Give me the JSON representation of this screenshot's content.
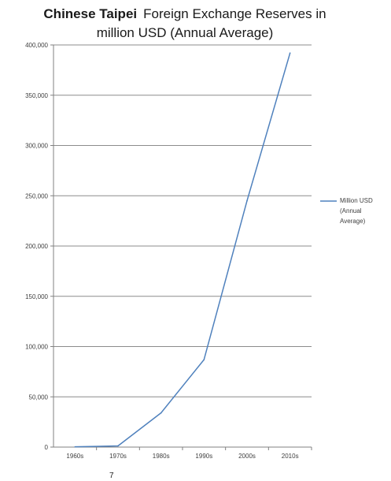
{
  "chart_data": {
    "type": "line",
    "title_bold": "Chinese Taipei",
    "title_line1": "Foreign Exchange Reserves in",
    "title_line2": "million USD (Annual Average)",
    "categories": [
      "1960s",
      "1970s",
      "1980s",
      "1990s",
      "2000s",
      "2010s"
    ],
    "series": [
      {
        "name": "Million USD (Annual Average)",
        "legend_lines": [
          "Million USD",
          "(Annual",
          "Average)"
        ],
        "values": [
          300,
          1200,
          34000,
          87000,
          245000,
          392000
        ],
        "color": "#4f81bd"
      }
    ],
    "yticks": [
      "0",
      "50,000",
      "100,000",
      "150,000",
      "200,000",
      "250,000",
      "300,000",
      "350,000",
      "400,000"
    ],
    "ylim": [
      0,
      400000
    ],
    "grid": true,
    "legend_position": "right"
  },
  "footnote": "7"
}
